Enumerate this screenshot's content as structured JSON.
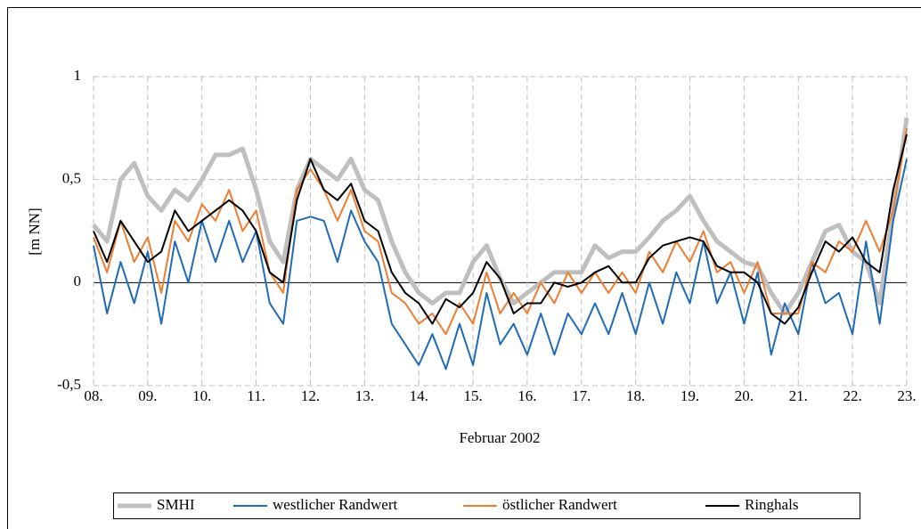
{
  "chart_data": {
    "type": "line",
    "xlabel": "Februar 2002",
    "ylabel": "[m NN]",
    "x": [
      8,
      8.25,
      8.5,
      8.75,
      9,
      9.25,
      9.5,
      9.75,
      10,
      10.25,
      10.5,
      10.75,
      11,
      11.25,
      11.5,
      11.75,
      12,
      12.25,
      12.5,
      12.75,
      13,
      13.25,
      13.5,
      13.75,
      14,
      14.25,
      14.5,
      14.75,
      15,
      15.25,
      15.5,
      15.75,
      16,
      16.25,
      16.5,
      16.75,
      17,
      17.25,
      17.5,
      17.75,
      18,
      18.25,
      18.5,
      18.75,
      19,
      19.25,
      19.5,
      19.75,
      20,
      20.25,
      20.5,
      20.75,
      21,
      21.25,
      21.5,
      21.75,
      22,
      22.25,
      22.5,
      22.75,
      23
    ],
    "xlim": [
      8,
      23
    ],
    "xticks": [
      {
        "value": 8,
        "label": "08."
      },
      {
        "value": 9,
        "label": "09."
      },
      {
        "value": 10,
        "label": "10."
      },
      {
        "value": 11,
        "label": "11."
      },
      {
        "value": 12,
        "label": "12."
      },
      {
        "value": 13,
        "label": "13."
      },
      {
        "value": 14,
        "label": "14."
      },
      {
        "value": 15,
        "label": "15."
      },
      {
        "value": 16,
        "label": "16."
      },
      {
        "value": 17,
        "label": "17."
      },
      {
        "value": 18,
        "label": "18."
      },
      {
        "value": 19,
        "label": "19."
      },
      {
        "value": 20,
        "label": "20."
      },
      {
        "value": 21,
        "label": "21."
      },
      {
        "value": 22,
        "label": "22."
      },
      {
        "value": 23,
        "label": "23."
      }
    ],
    "ylim": [
      -0.5,
      1
    ],
    "yticks": [
      {
        "value": -0.5,
        "label": "-0,5"
      },
      0,
      {
        "value": 0.5,
        "label": "0,5"
      },
      1
    ],
    "grid": true,
    "legend": "bottom",
    "series": [
      {
        "name": "SMHI",
        "color": "#bfbfbf",
        "values": [
          0.28,
          0.2,
          0.5,
          0.58,
          0.42,
          0.35,
          0.45,
          0.4,
          0.5,
          0.62,
          0.62,
          0.65,
          0.45,
          0.2,
          0.1,
          0.45,
          0.6,
          0.55,
          0.5,
          0.6,
          0.45,
          0.4,
          0.2,
          0.05,
          -0.05,
          -0.1,
          -0.05,
          -0.05,
          0.1,
          0.18,
          0.02,
          -0.1,
          -0.05,
          0,
          0.05,
          0.05,
          0.05,
          0.18,
          0.12,
          0.15,
          0.15,
          0.22,
          0.3,
          0.35,
          0.42,
          0.3,
          0.2,
          0.15,
          0.1,
          0.08,
          -0.05,
          -0.15,
          -0.05,
          0.1,
          0.25,
          0.28,
          0.15,
          0.1,
          -0.1,
          0.35,
          0.8
        ]
      },
      {
        "name": "westlicher Randwert",
        "color": "#1f6bb5",
        "values": [
          0.18,
          -0.15,
          0.1,
          -0.1,
          0.15,
          -0.2,
          0.2,
          0,
          0.3,
          0.1,
          0.3,
          0.1,
          0.25,
          -0.1,
          -0.2,
          0.3,
          0.32,
          0.3,
          0.1,
          0.35,
          0.2,
          0.1,
          -0.2,
          -0.3,
          -0.4,
          -0.25,
          -0.42,
          -0.2,
          -0.4,
          -0.05,
          -0.3,
          -0.2,
          -0.35,
          -0.15,
          -0.35,
          -0.15,
          -0.25,
          -0.1,
          -0.25,
          -0.05,
          -0.25,
          0,
          -0.2,
          0.05,
          -0.1,
          0.2,
          -0.1,
          0.05,
          -0.2,
          0.05,
          -0.35,
          -0.1,
          -0.25,
          0.1,
          -0.1,
          -0.05,
          -0.25,
          0.2,
          -0.2,
          0.3,
          0.6
        ]
      },
      {
        "name": "östlicher Randwert",
        "color": "#ed7d31",
        "values": [
          0.22,
          0.05,
          0.3,
          0.1,
          0.22,
          -0.05,
          0.3,
          0.2,
          0.38,
          0.3,
          0.45,
          0.25,
          0.35,
          0.05,
          -0.05,
          0.45,
          0.55,
          0.45,
          0.3,
          0.45,
          0.25,
          0.2,
          -0.05,
          -0.1,
          -0.2,
          -0.15,
          -0.25,
          -0.1,
          -0.2,
          0.05,
          -0.15,
          -0.05,
          -0.15,
          0,
          -0.1,
          0.05,
          -0.05,
          0.05,
          -0.05,
          0.05,
          -0.05,
          0.15,
          0.05,
          0.2,
          0.1,
          0.25,
          0.05,
          0.1,
          -0.05,
          0.1,
          -0.15,
          -0.15,
          -0.15,
          0.1,
          0.05,
          0.2,
          0.15,
          0.3,
          0.15,
          0.35,
          0.75
        ]
      },
      {
        "name": "Ringhals",
        "color": "#000000",
        "values": [
          0.25,
          0.1,
          0.3,
          0.2,
          0.1,
          0.15,
          0.35,
          0.25,
          0.3,
          0.35,
          0.4,
          0.35,
          0.25,
          0.05,
          0,
          0.4,
          0.6,
          0.45,
          0.4,
          0.48,
          0.3,
          0.25,
          0.05,
          -0.05,
          -0.1,
          -0.2,
          -0.08,
          -0.12,
          -0.05,
          0.1,
          0.02,
          -0.15,
          -0.1,
          -0.1,
          0,
          -0.02,
          0,
          0.05,
          0.08,
          0,
          0,
          0.12,
          0.18,
          0.2,
          0.22,
          0.2,
          0.08,
          0.05,
          0.05,
          0,
          -0.15,
          -0.2,
          -0.12,
          0.05,
          0.2,
          0.15,
          0.22,
          0.1,
          0.05,
          0.45,
          0.72
        ]
      }
    ]
  }
}
